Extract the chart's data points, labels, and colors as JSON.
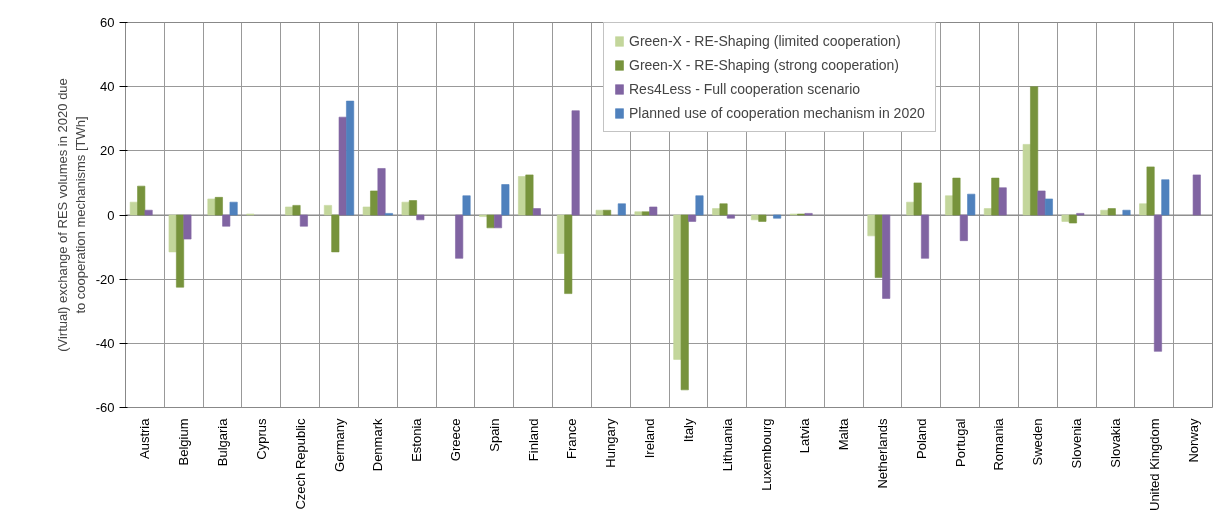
{
  "chart_data": {
    "type": "bar",
    "ylabel": "(Virtual) exchange of RES volumes in 2020 due\nto cooperation mechanisms [TWh]",
    "categories": [
      "Austria",
      "Belgium",
      "Bulgaria",
      "Cyprus",
      "Czech Republic",
      "Germany",
      "Denmark",
      "Estonia",
      "Greece",
      "Spain",
      "Finland",
      "France",
      "Hungary",
      "Ireland",
      "Italy",
      "Lithuania",
      "Luxembourg",
      "Latvia",
      "Malta",
      "Netherlands",
      "Poland",
      "Portugal",
      "Romania",
      "Sweden",
      "Slovenia",
      "Slovakia",
      "United Kingdom",
      "Norway"
    ],
    "series": [
      {
        "name": "Green-X - RE-Shaping (limited cooperation)",
        "color": "#c3d69b",
        "values": [
          4,
          -11.5,
          5,
          0.3,
          2.5,
          3,
          2.5,
          4,
          null,
          -0.5,
          12,
          -12,
          1.5,
          1,
          -45,
          2,
          -1.5,
          0.3,
          null,
          -6.5,
          4,
          6,
          2,
          22,
          -2,
          1.5,
          3.5,
          null
        ]
      },
      {
        "name": "Green-X - RE-Shaping (strong cooperation)",
        "color": "#77933c",
        "values": [
          9,
          -22.5,
          5.5,
          null,
          3,
          -11.5,
          7.5,
          4.5,
          null,
          -4,
          12.5,
          -24.5,
          1.5,
          1,
          -54.5,
          3.5,
          -2,
          0.3,
          null,
          -19.5,
          10,
          11.5,
          11.5,
          40,
          -2.5,
          2,
          15,
          null
        ]
      },
      {
        "name": "Res4Less - Full cooperation scenario",
        "color": "#8064a2",
        "values": [
          1.5,
          -7.5,
          -3.5,
          null,
          -3.5,
          30.5,
          14.5,
          -1.5,
          -13.5,
          -4,
          2,
          32.5,
          null,
          2.5,
          -2,
          -1,
          null,
          0.5,
          null,
          -26,
          -13.5,
          -8,
          8.5,
          7.5,
          0.5,
          null,
          -42.5,
          12.5
        ]
      },
      {
        "name": "Planned use of cooperation mechanism in 2020",
        "color": "#4f81bd",
        "values": [
          null,
          null,
          4,
          null,
          null,
          35.5,
          0.5,
          null,
          6,
          9.5,
          null,
          null,
          3.5,
          null,
          6,
          null,
          -1,
          null,
          null,
          null,
          null,
          6.5,
          null,
          5,
          null,
          1.5,
          11,
          null
        ]
      }
    ],
    "ylim": [
      -60,
      60
    ],
    "yticks": [
      -60,
      -40,
      -20,
      0,
      20,
      40,
      60
    ],
    "grid": true,
    "legend": "top"
  }
}
